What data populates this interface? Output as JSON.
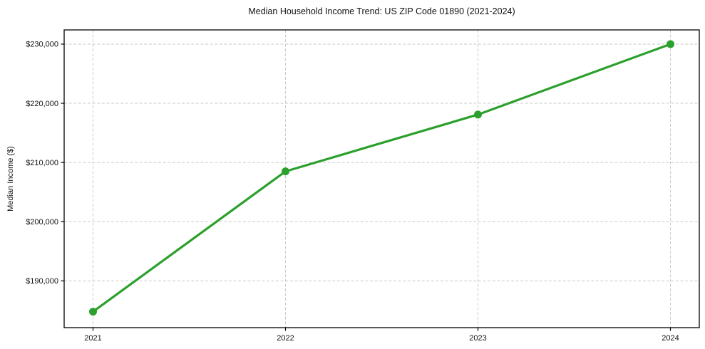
{
  "chart_data": {
    "type": "line",
    "title": "Median Household Income Trend: US ZIP Code 01890 (2021-2024)",
    "xlabel": "",
    "ylabel": "Median Income ($)",
    "x": [
      2021,
      2022,
      2023,
      2024
    ],
    "series": [
      {
        "name": "Median Income",
        "values": [
          184800,
          208500,
          218100,
          230000
        ],
        "color": "#2ca02c",
        "marker": "circle"
      }
    ],
    "xticks": {
      "values": [
        2021,
        2022,
        2023,
        2024
      ],
      "labels": [
        "2021",
        "2022",
        "2023",
        "2024"
      ]
    },
    "yticks": {
      "values": [
        190000,
        200000,
        210000,
        220000,
        230000
      ],
      "labels": [
        "$190,000",
        "$200,000",
        "$210,000",
        "$220,000",
        "$230,000"
      ]
    },
    "xlim": [
      2020.85,
      2024.15
    ],
    "ylim": [
      182100,
      232400
    ],
    "grid": {
      "visible": true,
      "style": "dashed",
      "color": "#c9c9c9"
    },
    "legend": "none",
    "background": "#ffffff",
    "spine_color": "#000000",
    "line_width": 3.2,
    "marker_radius": 5.5
  }
}
